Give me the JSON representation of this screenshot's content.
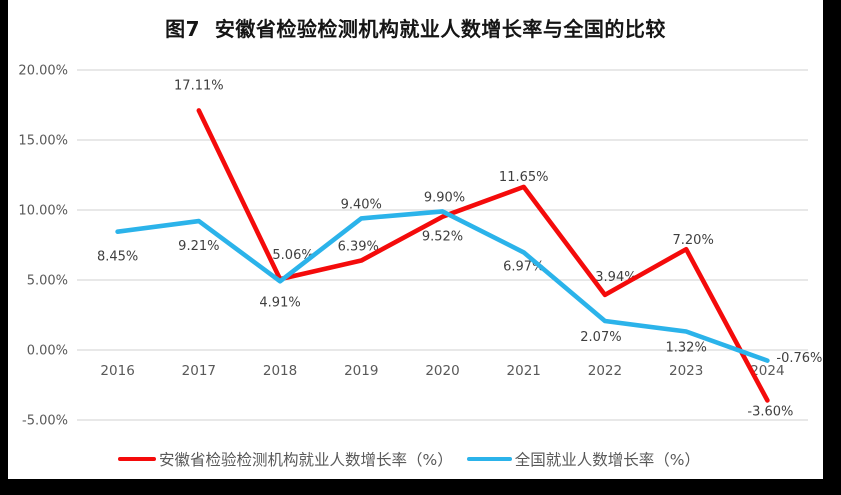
{
  "styles": {
    "grid_color": "#DADADA",
    "axis_label_color": "#595959",
    "data_label_color": "#3F3F3F",
    "title_color": "#151515",
    "frame_color": "#000000",
    "background": "#FFFFFF"
  },
  "chart_data": {
    "type": "line",
    "title": "图7  安徽省检验检测机构就业人数增长率与全国的比较",
    "categories": [
      "2016",
      "2017",
      "2018",
      "2019",
      "2020",
      "2021",
      "2022",
      "2023",
      "2024"
    ],
    "y_axis": {
      "min": -5,
      "max": 20,
      "step": 5,
      "tick_values": [
        20,
        15,
        10,
        5,
        0,
        -5
      ],
      "tick_labels": [
        "20.00%",
        "15.00%",
        "10.00%",
        "5.00%",
        "0.00%",
        "-5.00%"
      ]
    },
    "grid": true,
    "legend_position": "bottom",
    "series": [
      {
        "name": "安徽省检验检测机构就业人数增长率（%）",
        "color": "#F40B0B",
        "values": [
          null,
          17.11,
          5.06,
          6.39,
          9.52,
          11.65,
          3.94,
          7.2,
          -3.6
        ],
        "labels": [
          "",
          "17.11%",
          "5.06%",
          "6.39%",
          "9.52%",
          "11.65%",
          "3.94%",
          "7.20%",
          "-3.60%"
        ],
        "label_pos": [
          "",
          "above",
          "above",
          "above",
          "below",
          "above",
          "above",
          "above",
          "below"
        ],
        "label_dx": [
          0,
          0,
          13,
          -3,
          0,
          0,
          11,
          7,
          3
        ],
        "label_dy": [
          0,
          -11,
          -10,
          0,
          4,
          4,
          -4,
          5,
          -5
        ]
      },
      {
        "name": "全国就业人数增长率（%）",
        "color": "#2BB3EA",
        "values": [
          8.45,
          9.21,
          4.91,
          9.4,
          9.9,
          6.97,
          2.07,
          1.32,
          -0.76
        ],
        "labels": [
          "8.45%",
          "9.21%",
          "4.91%",
          "9.40%",
          "9.90%",
          "6.97%",
          "2.07%",
          "1.32%",
          "-0.76%"
        ],
        "label_pos": [
          "below",
          "below",
          "below",
          "above",
          "above",
          "below",
          "below",
          "below",
          "right"
        ],
        "label_dx": [
          0,
          0,
          0,
          0,
          2,
          0,
          -4,
          0,
          0
        ],
        "label_dy": [
          9,
          9,
          5,
          0,
          0,
          -2,
          0,
          0,
          -3
        ]
      }
    ]
  }
}
